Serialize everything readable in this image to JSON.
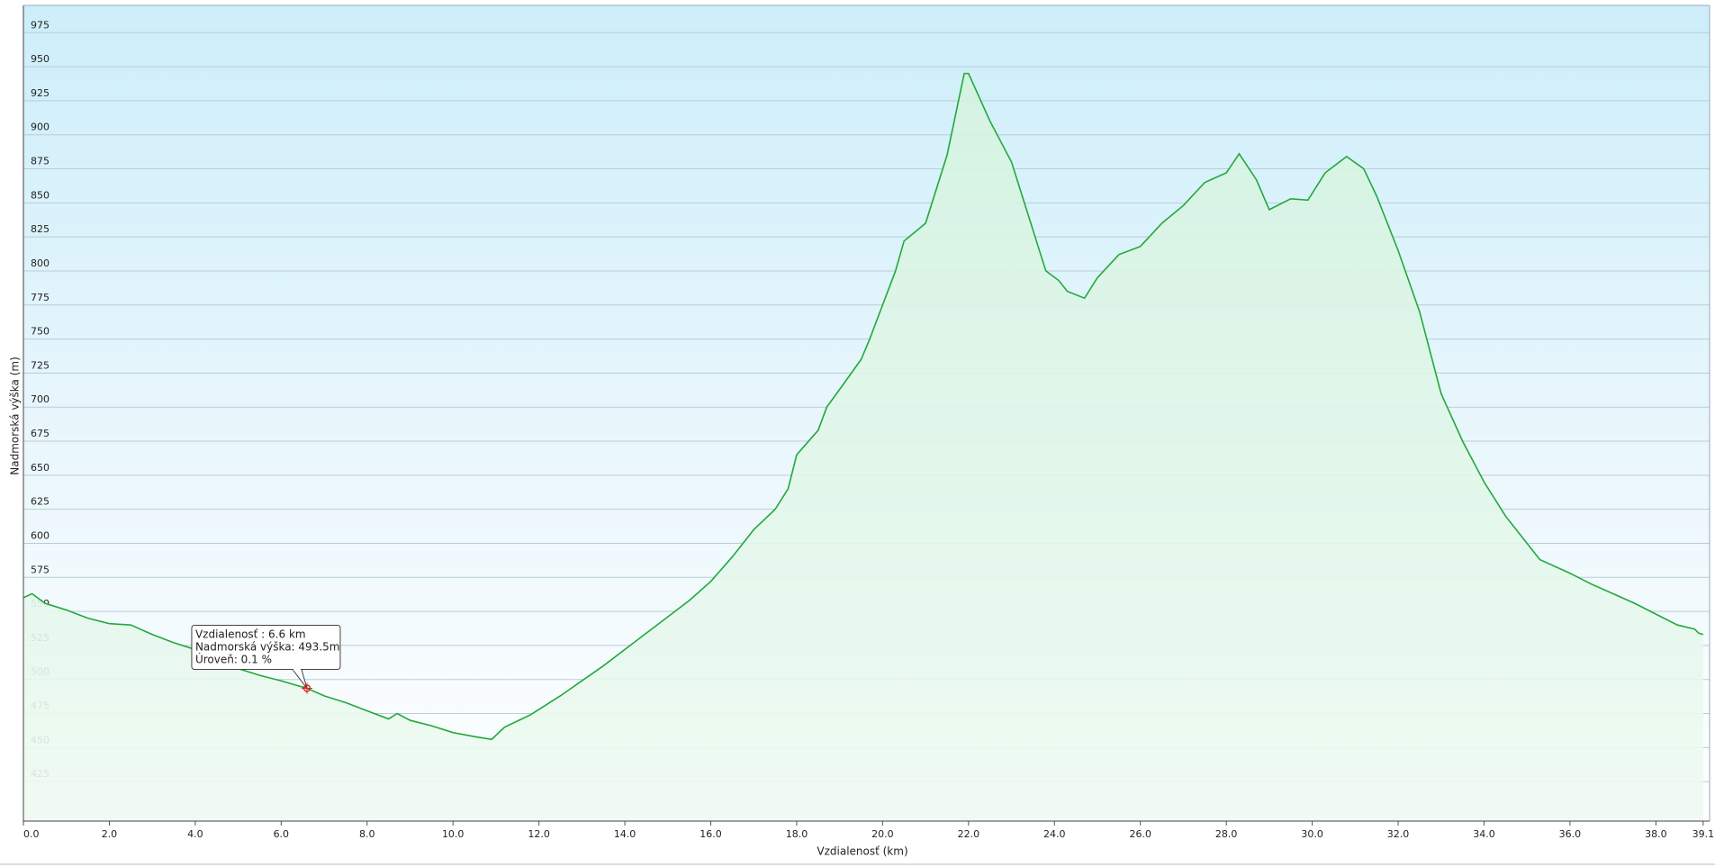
{
  "chart_data": {
    "type": "area",
    "x_label": "Vzdialenosť  (km)",
    "y_label": "Nadmorská výška (m)",
    "xlim": [
      0,
      39.25
    ],
    "ylim": [
      396,
      995
    ],
    "xticks": [
      {
        "value": 0,
        "label": "0.0"
      },
      {
        "value": 2,
        "label": "2.0"
      },
      {
        "value": 4,
        "label": "4.0"
      },
      {
        "value": 6,
        "label": "6.0"
      },
      {
        "value": 8,
        "label": "8.0"
      },
      {
        "value": 10,
        "label": "10.0"
      },
      {
        "value": 12,
        "label": "12.0"
      },
      {
        "value": 14,
        "label": "14.0"
      },
      {
        "value": 16,
        "label": "16.0"
      },
      {
        "value": 18,
        "label": "18.0"
      },
      {
        "value": 20,
        "label": "20.0"
      },
      {
        "value": 22,
        "label": "22.0"
      },
      {
        "value": 24,
        "label": "24.0"
      },
      {
        "value": 26,
        "label": "26.0"
      },
      {
        "value": 28,
        "label": "28.0"
      },
      {
        "value": 30,
        "label": "30.0"
      },
      {
        "value": 32,
        "label": "32.0"
      },
      {
        "value": 34,
        "label": "34.0"
      },
      {
        "value": 36,
        "label": "36.0"
      },
      {
        "value": 38,
        "label": "38.0"
      },
      {
        "value": 39.1,
        "label": "39.1"
      }
    ],
    "yticks": [
      425,
      450,
      475,
      500,
      525,
      550,
      575,
      600,
      625,
      650,
      675,
      700,
      725,
      750,
      775,
      800,
      825,
      850,
      875,
      900,
      925,
      950,
      975
    ],
    "grid": true,
    "x": [
      0.0,
      0.2,
      0.5,
      1.0,
      1.5,
      2.0,
      2.5,
      3.0,
      3.5,
      4.0,
      4.5,
      5.0,
      5.5,
      6.0,
      6.6,
      7.0,
      7.5,
      8.0,
      8.5,
      8.7,
      9.0,
      9.5,
      10.0,
      10.5,
      10.9,
      11.2,
      11.8,
      12.5,
      13.0,
      13.5,
      14.0,
      14.5,
      15.0,
      15.5,
      16.0,
      16.5,
      17.0,
      17.5,
      17.8,
      18.0,
      18.5,
      18.7,
      19.0,
      19.5,
      19.7,
      20.0,
      20.3,
      20.5,
      21.0,
      21.5,
      21.8,
      21.9,
      22.0,
      22.5,
      23.0,
      23.5,
      23.8,
      24.1,
      24.3,
      24.7,
      25.0,
      25.5,
      26.0,
      26.5,
      27.0,
      27.5,
      28.0,
      28.3,
      28.7,
      29.0,
      29.5,
      29.9,
      30.3,
      30.8,
      31.2,
      31.5,
      32.0,
      32.5,
      33.0,
      33.5,
      34.0,
      34.5,
      35.0,
      35.3,
      36.0,
      36.5,
      37.0,
      37.5,
      38.0,
      38.5,
      38.9,
      39.0,
      39.1
    ],
    "series": [
      {
        "color": "#22a83c",
        "fill": "#d8f5e2",
        "values": [
          560,
          563,
          556,
          551,
          545,
          541,
          540,
          533,
          527,
          522,
          518,
          508,
          503,
          499,
          493.5,
          488,
          483,
          477,
          471,
          475,
          470,
          466,
          461,
          458,
          456,
          465,
          474,
          488,
          499,
          510,
          522,
          534,
          546,
          558,
          572,
          590,
          610,
          625,
          640,
          665,
          683,
          700,
          713,
          735,
          750,
          775,
          800,
          822,
          835,
          885,
          930,
          945,
          945,
          910,
          880,
          830,
          800,
          793,
          785,
          780,
          795,
          812,
          818,
          835,
          848,
          865,
          872,
          886,
          867,
          845,
          853,
          852,
          872,
          884,
          875,
          855,
          815,
          770,
          710,
          675,
          645,
          620,
          600,
          588,
          578,
          570,
          563,
          556,
          548,
          540,
          537,
          534,
          533
        ]
      }
    ],
    "marker": {
      "x": 6.6,
      "y": 493.5,
      "color": "#e02020"
    },
    "tooltip": [
      "Vzdialenosť : 6.6 km",
      "Nadmorská výška: 493.5m",
      "Úroveň: 0.1 %"
    ]
  }
}
